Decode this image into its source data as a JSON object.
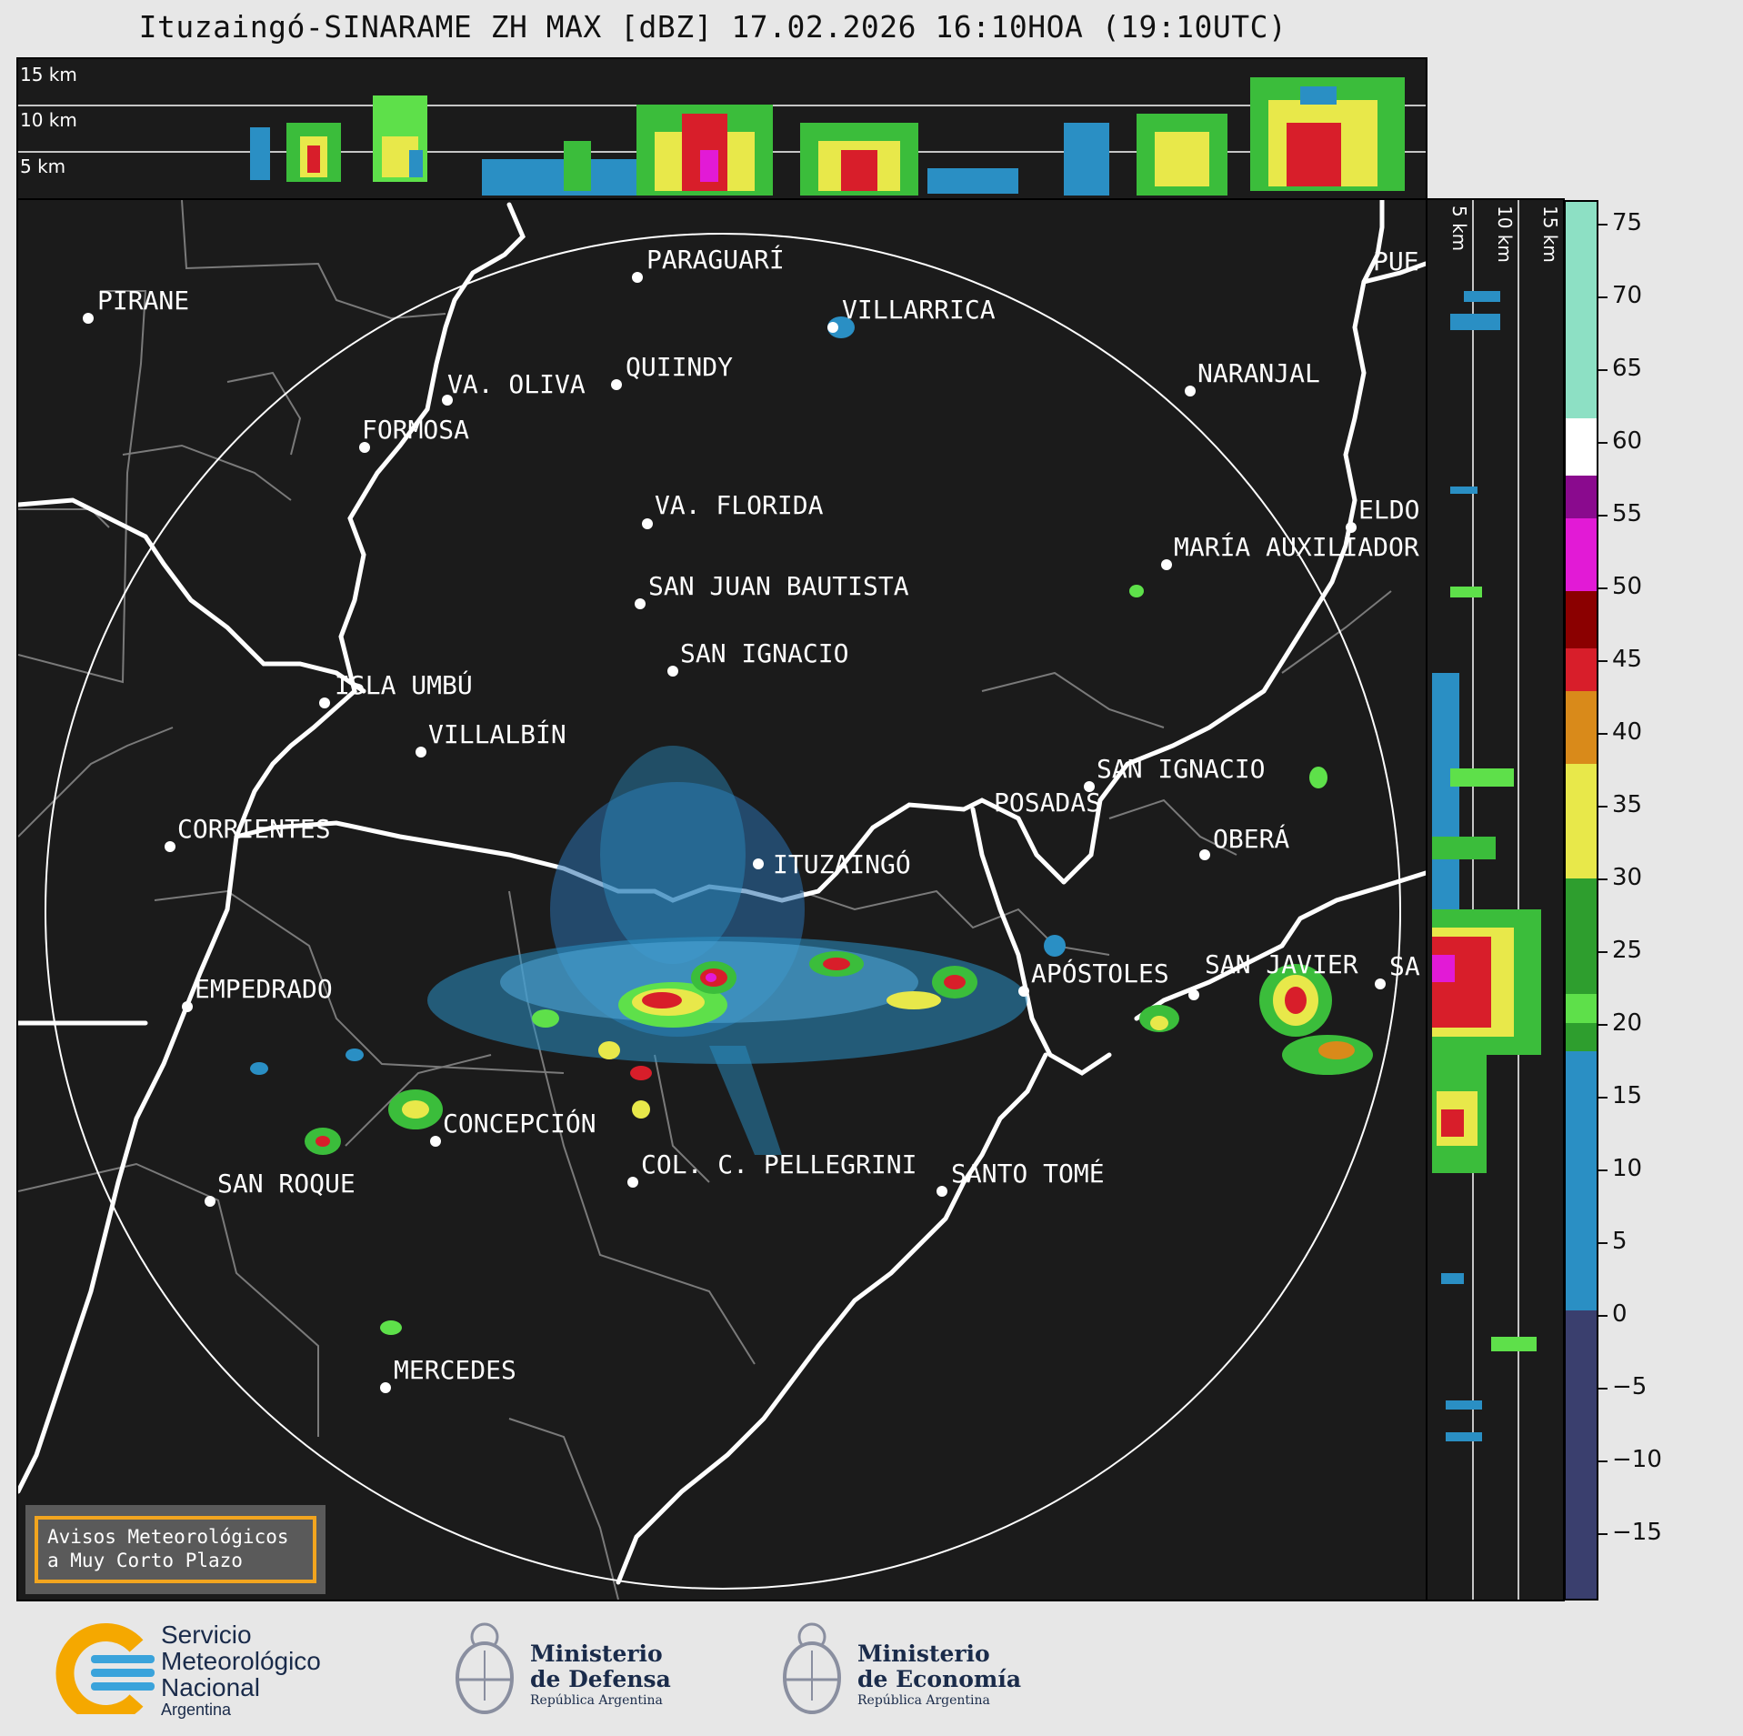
{
  "title": "Ituzaingó-SINARAME ZH MAX [dBZ] 17.02.2026 16:10HOA (19:10UTC)",
  "top_panel": {
    "altitudes": [
      "15 km",
      "10 km",
      "5 km"
    ]
  },
  "side_panel": {
    "altitudes": [
      "5 km",
      "10 km",
      "15 km"
    ]
  },
  "radar_site": "ITUZAINGÓ",
  "places": [
    {
      "id": "pirane",
      "name": "PIRANE"
    },
    {
      "id": "paraguari",
      "name": "PARAGUARÍ"
    },
    {
      "id": "villarrica",
      "name": "VILLARRICA"
    },
    {
      "id": "pue",
      "name": "PUE"
    },
    {
      "id": "quiindy",
      "name": "QUIINDY"
    },
    {
      "id": "va-oliva",
      "name": "VA. OLIVA"
    },
    {
      "id": "naranjal",
      "name": "NARANJAL"
    },
    {
      "id": "formosa",
      "name": "FORMOSA"
    },
    {
      "id": "va-florida",
      "name": "VA. FLORIDA"
    },
    {
      "id": "eldo",
      "name": "ELDO"
    },
    {
      "id": "maria-auxiliadora",
      "name": "MARÍA AUXILIADOR"
    },
    {
      "id": "san-juan-bautista",
      "name": "SAN JUAN BAUTISTA"
    },
    {
      "id": "san-ignacio-py",
      "name": "SAN IGNACIO"
    },
    {
      "id": "isla-umbu",
      "name": "ISLA UMBÚ"
    },
    {
      "id": "villalbin",
      "name": "VILLALBÍN"
    },
    {
      "id": "san-ignacio-ar",
      "name": "SAN IGNACIO"
    },
    {
      "id": "posadas",
      "name": "POSADAS"
    },
    {
      "id": "corrientes",
      "name": "CORRIENTES"
    },
    {
      "id": "obera",
      "name": "OBERÁ"
    },
    {
      "id": "empedrado",
      "name": "EMPEDRADO"
    },
    {
      "id": "apostoles",
      "name": "APÓSTOLES"
    },
    {
      "id": "san-javier",
      "name": "SAN JAVIER"
    },
    {
      "id": "sa",
      "name": "SA"
    },
    {
      "id": "concepcion",
      "name": "CONCEPCIÓN"
    },
    {
      "id": "san-roque",
      "name": "SAN ROQUE"
    },
    {
      "id": "col-pellegrini",
      "name": "COL. C. PELLEGRINI"
    },
    {
      "id": "santo-tome",
      "name": "SANTO TOMÉ"
    },
    {
      "id": "mercedes",
      "name": "MERCEDES"
    }
  ],
  "colorbar": {
    "ticks": [
      "75",
      "70",
      "65",
      "60",
      "55",
      "50",
      "45",
      "40",
      "35",
      "30",
      "25",
      "20",
      "15",
      "10",
      "5",
      "0",
      "−5",
      "−10",
      "−15"
    ],
    "colors": {
      "low": "#3a3f6e",
      "blue": "#2a8fc4",
      "green": "#2e9e2e",
      "lime": "#5ee04a",
      "yellow": "#e8e84a",
      "orange": "#d98a1a",
      "red": "#d81e2a",
      "darkred": "#8b0000",
      "magenta": "#e21ad6",
      "purple": "#8a0a8e",
      "white": "#ffffff",
      "mint": "#8de0c4"
    }
  },
  "warning": {
    "line1": "Avisos Meteorológicos",
    "line2": "a Muy Corto Plazo"
  },
  "logos": {
    "smn": {
      "line1": "Servicio",
      "line2": "Meteorológico",
      "line3": "Nacional",
      "line4": "Argentina"
    },
    "defensa": {
      "line1": "Ministerio",
      "line2": "de Defensa",
      "line3": "República Argentina"
    },
    "economia": {
      "line1": "Ministerio",
      "line2": "de Economía",
      "line3": "República Argentina"
    }
  }
}
